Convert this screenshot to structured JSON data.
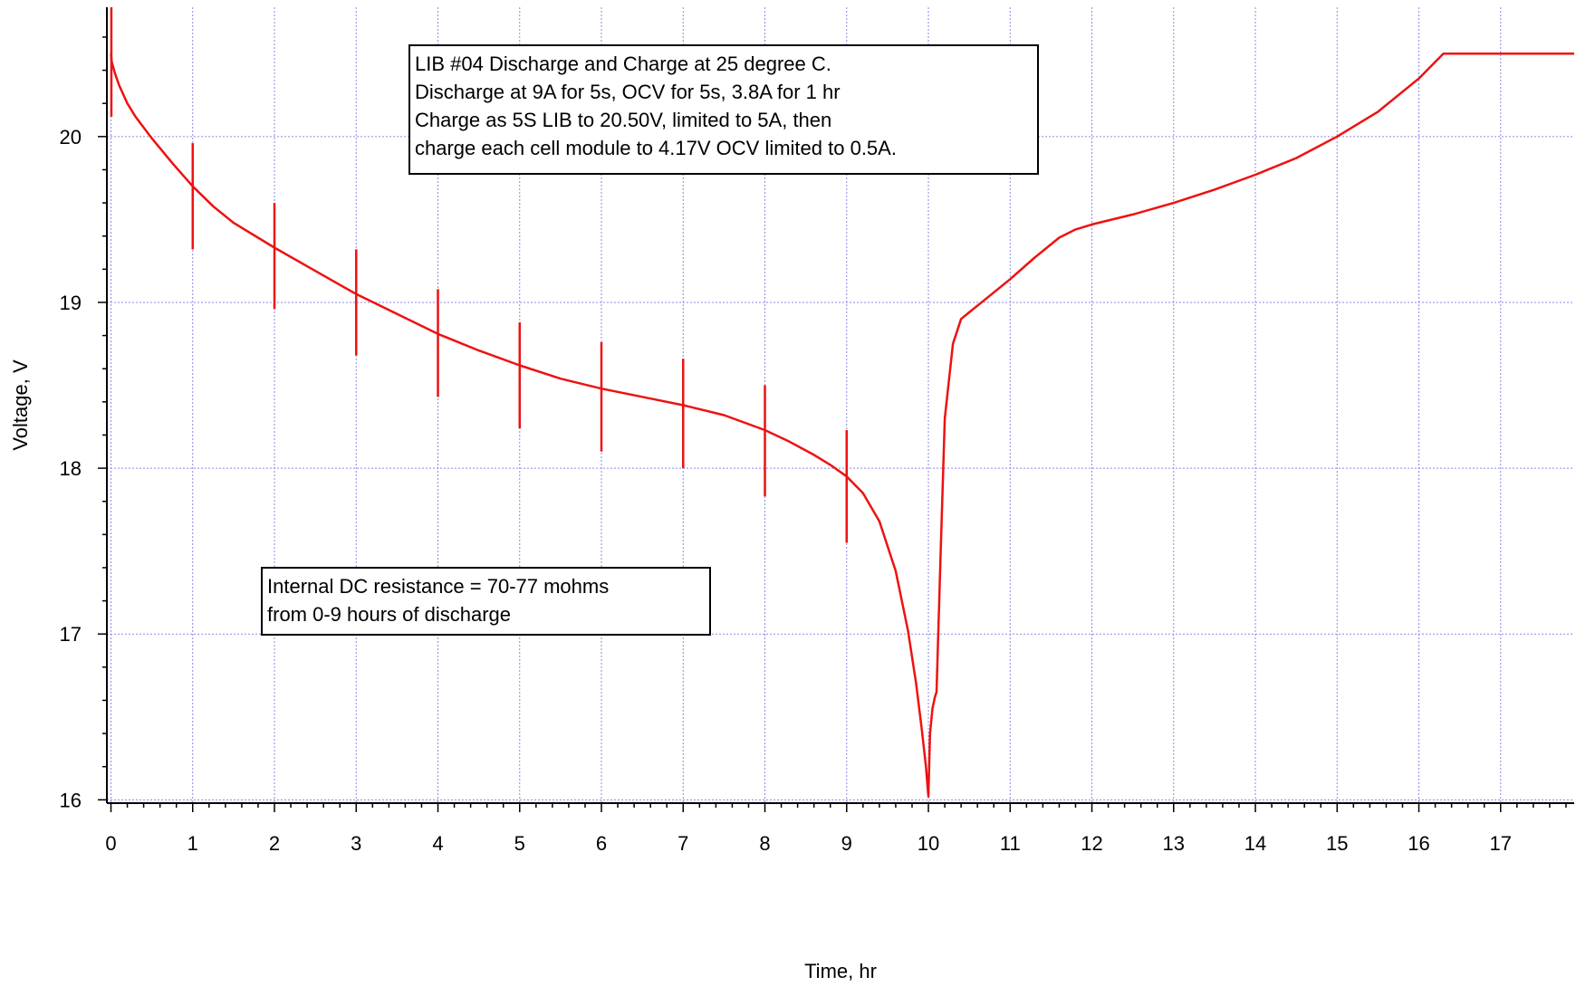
{
  "chart_data": {
    "type": "line",
    "title": "",
    "xlabel": "Time, hr",
    "ylabel": "Voltage, V",
    "xlim": [
      -0.05,
      17.9
    ],
    "ylim": [
      15.98,
      20.78
    ],
    "grid": true,
    "x_ticks": [
      0,
      1,
      2,
      3,
      4,
      5,
      6,
      7,
      8,
      9,
      10,
      11,
      12,
      13,
      14,
      15,
      16,
      17
    ],
    "x_tick_labels": [
      "0",
      "1",
      "2",
      "3",
      "4",
      "5",
      "6",
      "7",
      "8",
      "9",
      "10",
      "11",
      "12",
      "13",
      "14",
      "15",
      "16",
      "17"
    ],
    "y_ticks": [
      16,
      17,
      18,
      19,
      20
    ],
    "y_tick_labels": [
      "16",
      "17",
      "18",
      "19",
      "20"
    ],
    "colors": {
      "series": "#ee1111",
      "grid": "#8a8ae6",
      "axis": "#000000"
    },
    "series": [
      {
        "x": [
          0,
          0.01,
          0.05,
          0.1,
          0.2,
          0.3,
          0.5,
          0.75,
          1,
          1.25,
          1.5,
          2,
          2.5,
          3,
          3.5,
          4,
          4.5,
          5,
          5.5,
          6,
          6.5,
          7,
          7.5,
          8,
          8.3,
          8.6,
          8.8,
          9,
          9.2,
          9.4,
          9.6,
          9.75,
          9.85,
          9.92,
          9.97,
          10.0,
          10.02,
          10.05,
          10.08,
          10.1,
          10.15,
          10.2,
          10.3,
          10.4,
          10.5,
          10.7,
          11,
          11.3,
          11.6,
          11.8,
          12,
          12.5,
          13,
          13.5,
          14,
          14.5,
          15,
          15.5,
          16,
          16.3,
          16.5,
          17,
          17.5,
          17.9
        ],
        "y": [
          20.5,
          20.45,
          20.38,
          20.31,
          20.2,
          20.12,
          19.99,
          19.84,
          19.7,
          19.58,
          19.48,
          19.33,
          19.19,
          19.05,
          18.93,
          18.81,
          18.71,
          18.62,
          18.54,
          18.48,
          18.43,
          18.38,
          18.32,
          18.23,
          18.16,
          18.08,
          18.02,
          17.95,
          17.85,
          17.68,
          17.38,
          17.02,
          16.7,
          16.42,
          16.2,
          16.02,
          16.4,
          16.55,
          16.62,
          16.65,
          17.5,
          18.3,
          18.75,
          18.9,
          18.94,
          19.02,
          19.14,
          19.27,
          19.39,
          19.44,
          19.47,
          19.53,
          19.6,
          19.68,
          19.77,
          19.87,
          20.0,
          20.15,
          20.35,
          20.5,
          20.5,
          20.5,
          20.5,
          20.5
        ]
      }
    ],
    "spikes": [
      {
        "x": 0.005,
        "y_min": 20.12,
        "y_max": 20.78
      },
      {
        "x": 1,
        "y_min": 19.32,
        "y_max": 19.96
      },
      {
        "x": 2,
        "y_min": 18.96,
        "y_max": 19.6
      },
      {
        "x": 3,
        "y_min": 18.68,
        "y_max": 19.32
      },
      {
        "x": 4,
        "y_min": 18.43,
        "y_max": 19.08
      },
      {
        "x": 5,
        "y_min": 18.24,
        "y_max": 18.88
      },
      {
        "x": 6,
        "y_min": 18.1,
        "y_max": 18.76
      },
      {
        "x": 7,
        "y_min": 18.0,
        "y_max": 18.66
      },
      {
        "x": 8,
        "y_min": 17.83,
        "y_max": 18.5
      },
      {
        "x": 9,
        "y_min": 17.55,
        "y_max": 18.23
      }
    ],
    "annotations": [
      {
        "lines": [
          "LIB #04 Discharge and Charge at 25 degree C.",
          "Discharge at 9A for 5s, OCV for 5s, 3.8A for 1 hr",
          "Charge as 5S LIB to 20.50V, limited to 5A, then",
          "charge each cell module to 4.17V OCV limited to 0.5A."
        ]
      },
      {
        "lines": [
          "Internal DC resistance = 70-77 mohms",
          "from 0-9 hours of discharge"
        ]
      }
    ]
  }
}
